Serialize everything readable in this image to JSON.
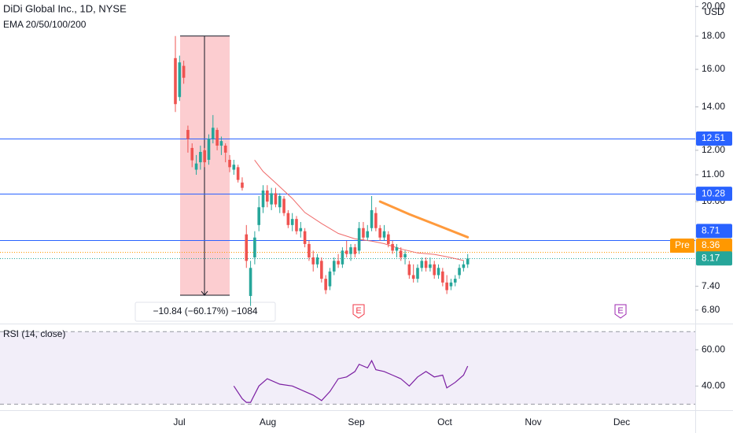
{
  "chart_data": [
    {
      "type": "candlestick",
      "title": "DiDi Global Inc., 1D, NYSE",
      "indicator": "EMA 20/50/100/200",
      "currency": "USD",
      "log_scale": true,
      "ylim": [
        6.5,
        20.3
      ],
      "yticks": [
        {
          "value": 20,
          "label": "20.00"
        },
        {
          "value": 18,
          "label": "18.00"
        },
        {
          "value": 16,
          "label": "16.00"
        },
        {
          "value": 14,
          "label": "14.00"
        },
        {
          "value": 12,
          "label": "12.00"
        },
        {
          "value": 11,
          "label": "11.00"
        },
        {
          "value": 10,
          "label": "10.00"
        },
        {
          "value": 7.4,
          "label": "7.40"
        },
        {
          "value": 6.8,
          "label": "6.80"
        }
      ],
      "x_labels": [
        "Jul",
        "Aug",
        "Sep",
        "Oct",
        "Nov",
        "Dec"
      ],
      "up_color": "#26a69a",
      "down_color": "#ef5350",
      "ohlc": [
        [
          16.65,
          18.01,
          13.75,
          14.14
        ],
        [
          14.5,
          16.8,
          14.3,
          16.4
        ],
        [
          16.2,
          16.5,
          15.2,
          15.53
        ],
        [
          12.9,
          13.1,
          11.9,
          12.49
        ],
        [
          12.1,
          12.3,
          11.3,
          11.58
        ],
        [
          11.2,
          11.8,
          11.0,
          11.45
        ],
        [
          11.5,
          12.2,
          11.2,
          11.93
        ],
        [
          12.0,
          12.1,
          11.3,
          11.5
        ],
        [
          11.6,
          12.7,
          11.4,
          12.5
        ],
        [
          12.5,
          13.6,
          12.3,
          13.0
        ],
        [
          12.9,
          13.0,
          12.0,
          12.2
        ],
        [
          12.2,
          12.6,
          11.8,
          12.4
        ],
        [
          12.2,
          12.3,
          11.5,
          11.9
        ],
        [
          11.6,
          11.8,
          11.1,
          11.3
        ],
        [
          11.2,
          11.6,
          11.0,
          11.4
        ],
        [
          11.3,
          11.4,
          10.7,
          10.8
        ],
        [
          10.7,
          10.9,
          10.4,
          10.5
        ],
        [
          8.9,
          9.2,
          7.9,
          8.1
        ],
        [
          7.15,
          8.1,
          6.9,
          7.9
        ],
        [
          8.2,
          9.0,
          8.0,
          8.8
        ],
        [
          9.2,
          10.2,
          9.0,
          9.8
        ],
        [
          9.8,
          10.6,
          9.6,
          10.4
        ],
        [
          10.4,
          10.6,
          9.8,
          10.0
        ],
        [
          9.9,
          10.5,
          9.7,
          10.3
        ],
        [
          10.3,
          10.5,
          9.8,
          9.9
        ],
        [
          9.8,
          10.3,
          9.6,
          10.2
        ],
        [
          10.1,
          10.2,
          9.5,
          9.6
        ],
        [
          9.6,
          9.7,
          9.1,
          9.2
        ],
        [
          9.2,
          9.6,
          9.0,
          9.4
        ],
        [
          9.4,
          9.5,
          8.9,
          9.0
        ],
        [
          9.0,
          9.3,
          8.8,
          9.1
        ],
        [
          9.0,
          9.1,
          8.5,
          8.6
        ],
        [
          8.6,
          8.7,
          8.1,
          8.2
        ],
        [
          8.2,
          8.4,
          7.8,
          8.0
        ],
        [
          8.0,
          8.3,
          7.9,
          8.2
        ],
        [
          8.1,
          8.2,
          7.5,
          7.6
        ],
        [
          7.6,
          7.7,
          7.2,
          7.3
        ],
        [
          7.4,
          7.9,
          7.3,
          7.8
        ],
        [
          7.8,
          8.2,
          7.7,
          8.1
        ],
        [
          8.1,
          8.3,
          7.9,
          8.0
        ],
        [
          8.0,
          8.5,
          7.9,
          8.4
        ],
        [
          8.4,
          8.7,
          8.2,
          8.3
        ],
        [
          8.3,
          8.6,
          8.1,
          8.5
        ],
        [
          8.5,
          8.6,
          8.2,
          8.3
        ],
        [
          8.4,
          9.3,
          8.3,
          9.1
        ],
        [
          9.1,
          9.3,
          8.7,
          8.8
        ],
        [
          8.8,
          9.2,
          8.7,
          9.0
        ],
        [
          9.1,
          10.2,
          9.0,
          9.7
        ],
        [
          9.6,
          9.8,
          9.0,
          9.1
        ],
        [
          9.1,
          9.2,
          8.7,
          8.8
        ],
        [
          8.8,
          9.2,
          8.7,
          9.0
        ],
        [
          8.9,
          9.0,
          8.5,
          8.6
        ],
        [
          8.6,
          8.7,
          8.3,
          8.4
        ],
        [
          8.4,
          8.6,
          8.2,
          8.5
        ],
        [
          8.4,
          8.5,
          8.1,
          8.2
        ],
        [
          8.2,
          8.4,
          8.0,
          8.3
        ],
        [
          8.0,
          8.1,
          7.6,
          7.7
        ],
        [
          7.7,
          8.0,
          7.5,
          7.6
        ],
        [
          7.6,
          8.0,
          7.5,
          7.9
        ],
        [
          7.9,
          8.2,
          7.8,
          8.1
        ],
        [
          8.1,
          8.2,
          7.8,
          7.9
        ],
        [
          7.9,
          8.2,
          7.8,
          8.0
        ],
        [
          8.0,
          8.1,
          7.6,
          7.7
        ],
        [
          7.7,
          8.0,
          7.6,
          7.9
        ],
        [
          7.8,
          7.9,
          7.4,
          7.5
        ],
        [
          7.5,
          7.7,
          7.2,
          7.3
        ],
        [
          7.4,
          7.6,
          7.3,
          7.5
        ],
        [
          7.5,
          7.7,
          7.4,
          7.6
        ],
        [
          7.7,
          8.0,
          7.6,
          7.9
        ],
        [
          7.9,
          8.1,
          7.8,
          8.0
        ],
        [
          8.0,
          8.3,
          7.9,
          8.17
        ]
      ],
      "ema": [
        {
          "color": "#ef6a6a",
          "width": 1,
          "x": [
            19,
            21,
            24,
            28,
            31,
            35,
            39,
            43,
            47,
            50,
            54,
            58,
            62,
            65,
            69
          ],
          "values": [
            11.58,
            11.13,
            10.69,
            10.11,
            9.62,
            9.25,
            8.93,
            8.76,
            8.69,
            8.61,
            8.45,
            8.33,
            8.29,
            8.22,
            8.11
          ]
        },
        {
          "color": "#ff9a3c",
          "width": 3,
          "x": [
            49,
            56,
            63,
            70
          ],
          "values": [
            10.0,
            9.56,
            9.18,
            8.81
          ]
        }
      ],
      "price_lines": [
        {
          "value": 12.51,
          "color": "#2962ff"
        },
        {
          "value": 10.28,
          "color": "#2962ff"
        },
        {
          "value": 8.71,
          "color": "#2962ff"
        }
      ],
      "pre_market": {
        "label": "Pre",
        "value": 8.36,
        "color": "#ff9800"
      },
      "last": {
        "value": 8.17,
        "color": "#26a69a"
      },
      "measure": {
        "label": "−10.84 (−60.17%) −1084",
        "from": 18.01,
        "to": 7.17,
        "color": "#f23645"
      },
      "earnings": [
        {
          "label": "E",
          "color": "#f23645"
        },
        {
          "label": "E",
          "color": "#9c27b0"
        }
      ]
    },
    {
      "type": "line",
      "title": "RSI (14, close)",
      "ylim": [
        28,
        74
      ],
      "yticks": [
        {
          "value": 60,
          "label": "60.00"
        },
        {
          "value": 40,
          "label": "40.00"
        }
      ],
      "bands": [
        30,
        70
      ],
      "band_color": "#7e57c2",
      "color": "#7b1fa2",
      "x": [
        14,
        16,
        17,
        18,
        20,
        22,
        25,
        28,
        31,
        33,
        35,
        37,
        39,
        41,
        43,
        44,
        46,
        47,
        48,
        50,
        52,
        54,
        56,
        58,
        60,
        62,
        64,
        65,
        67,
        69,
        70
      ],
      "values": [
        40,
        33,
        31,
        31,
        40,
        44,
        41,
        40,
        37,
        35,
        32,
        37,
        44,
        45,
        48,
        52,
        50,
        54,
        49,
        48,
        46,
        44,
        40,
        45,
        48,
        45,
        46,
        39,
        42,
        46,
        51
      ]
    }
  ]
}
